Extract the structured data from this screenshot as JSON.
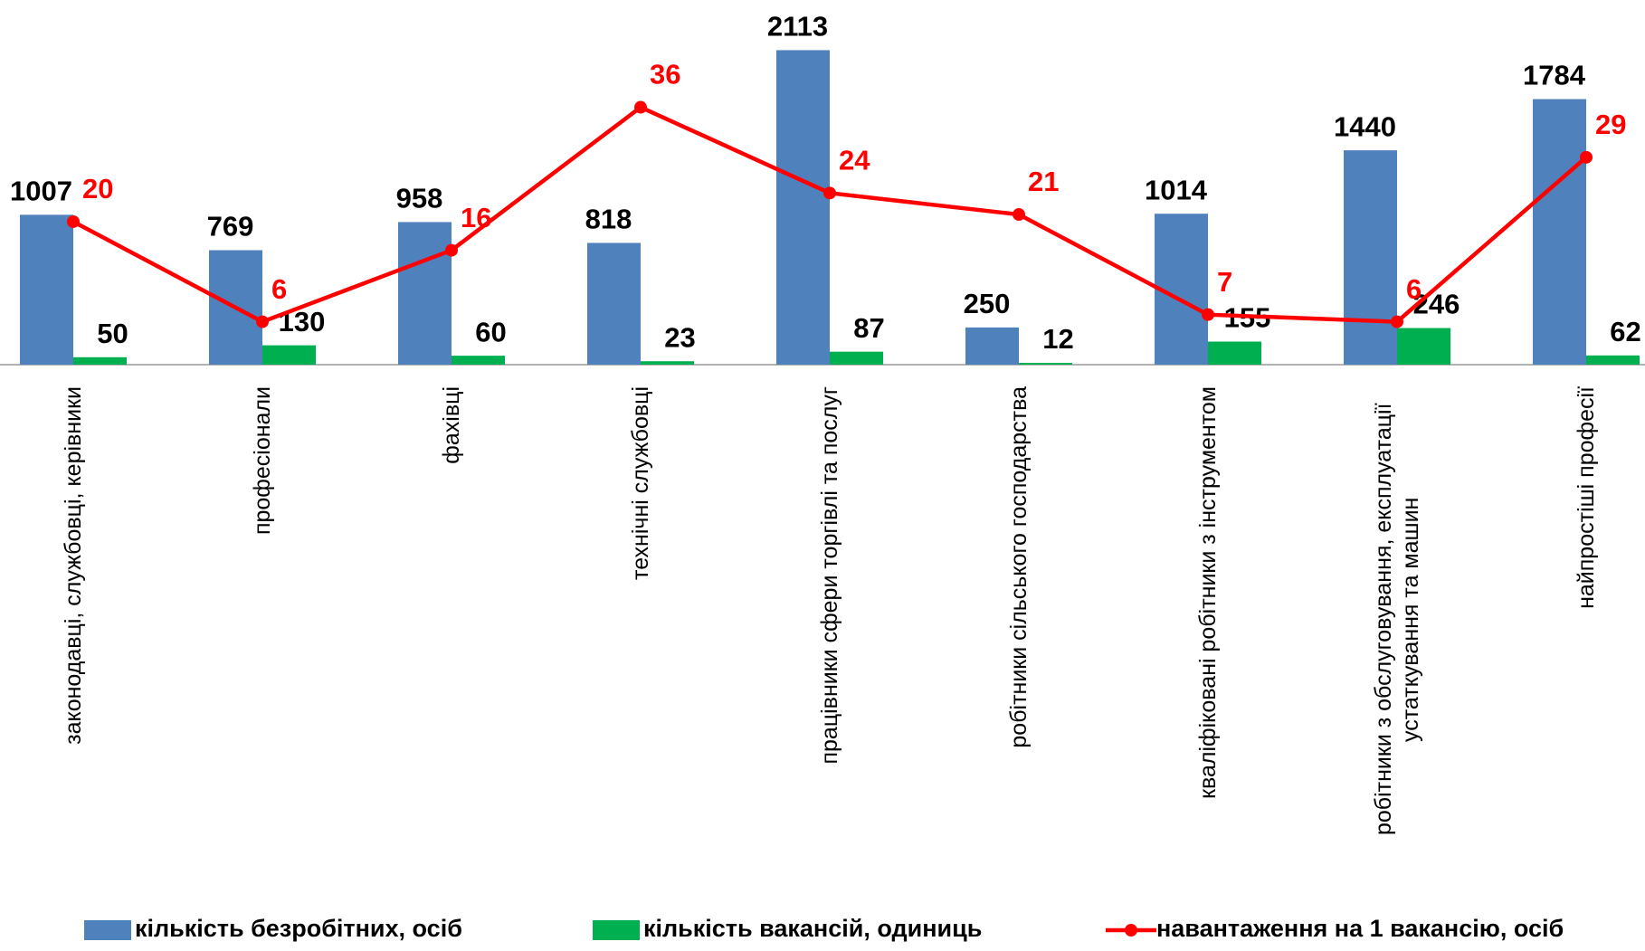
{
  "chart_data": {
    "type": "bar_line",
    "categories": [
      "законодавці,  службовці, керівники",
      "професіонали",
      "фахівці",
      "технічні службовці",
      "працівники сфери торгівлі та послуг",
      "робітники сільського господарства",
      "кваліфіковані робітники з інструментом",
      "робітники з обслуговування, експлуатації устаткування та машин",
      "найпростіші професії"
    ],
    "series": [
      {
        "name": "кількість безробітних,  осіб",
        "color": "#4f81bd",
        "type": "bar",
        "values": [
          1007,
          769,
          958,
          818,
          2113,
          250,
          1014,
          1440,
          1784
        ]
      },
      {
        "name": "кількість вакансій, одиниць",
        "color": "#00b050",
        "type": "bar",
        "values": [
          50,
          130,
          60,
          23,
          87,
          12,
          155,
          246,
          62
        ]
      },
      {
        "name": "навантаження на 1 вакансію, осіб",
        "color": "#ff0000",
        "type": "line",
        "axis": "y2",
        "values": [
          20,
          6,
          16,
          36,
          24,
          21,
          7,
          6,
          29
        ]
      }
    ],
    "ylim": [
      0,
      2450
    ],
    "y2lim": [
      0,
      51
    ],
    "legend": "bottom"
  }
}
